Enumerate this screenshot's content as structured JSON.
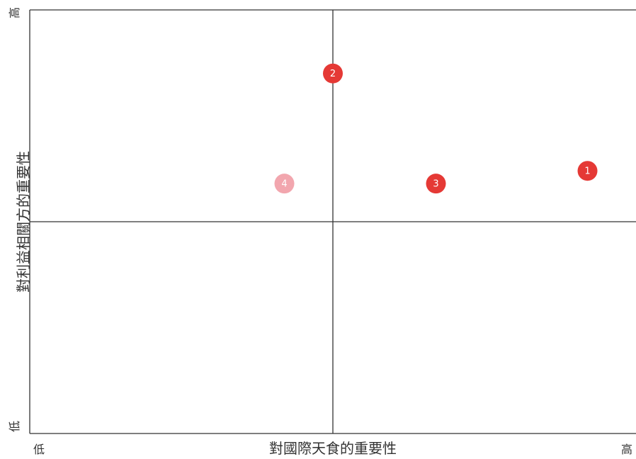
{
  "chart_data": {
    "type": "scatter",
    "xlabel": "對國際天食的重要性",
    "ylabel": "對利益相關方的重要性",
    "x_ticks": {
      "low": "低",
      "high": "高"
    },
    "y_ticks": {
      "low": "低",
      "high": "高"
    },
    "xlim": [
      0,
      10
    ],
    "ylim": [
      0,
      10
    ],
    "quadrant_divider": {
      "x": 5,
      "y": 5
    },
    "grid": false,
    "points": [
      {
        "label": "1",
        "x": 9.2,
        "y": 6.2,
        "color": "#e53935"
      },
      {
        "label": "2",
        "x": 5.0,
        "y": 8.5,
        "color": "#e53935"
      },
      {
        "label": "3",
        "x": 6.7,
        "y": 5.9,
        "color": "#e53935"
      },
      {
        "label": "4",
        "x": 4.2,
        "y": 5.9,
        "color": "#f2a6ae"
      }
    ]
  }
}
